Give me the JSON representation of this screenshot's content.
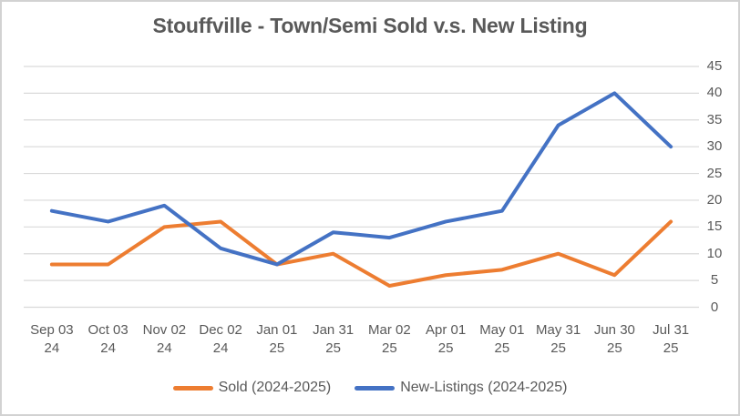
{
  "chart_data": {
    "type": "line",
    "title": "Stouffville - Town/Semi Sold v.s. New Listing",
    "categories": [
      {
        "line1": "Sep 03",
        "line2": "24"
      },
      {
        "line1": "Oct 03",
        "line2": "24"
      },
      {
        "line1": "Nov 02",
        "line2": "24"
      },
      {
        "line1": "Dec 02",
        "line2": "24"
      },
      {
        "line1": "Jan 01",
        "line2": "25"
      },
      {
        "line1": "Jan 31",
        "line2": "25"
      },
      {
        "line1": "Mar 02",
        "line2": "25"
      },
      {
        "line1": "Apr 01",
        "line2": "25"
      },
      {
        "line1": "May 01",
        "line2": "25"
      },
      {
        "line1": "May 31",
        "line2": "25"
      },
      {
        "line1": "Jun 30",
        "line2": "25"
      },
      {
        "line1": "Jul 31",
        "line2": "25"
      }
    ],
    "series": [
      {
        "name": "Sold (2024-2025)",
        "color": "#ED7D31",
        "values": [
          8,
          8,
          15,
          16,
          8,
          10,
          4,
          6,
          7,
          10,
          6,
          16
        ]
      },
      {
        "name": "New-Listings (2024-2025)",
        "color": "#4472C4",
        "values": [
          18,
          16,
          19,
          11,
          8,
          14,
          13,
          16,
          18,
          34,
          40,
          30
        ]
      }
    ],
    "ylim": [
      0,
      45
    ],
    "yticks": [
      0,
      5,
      10,
      15,
      20,
      25,
      30,
      35,
      40,
      45
    ],
    "y_axis_side": "right",
    "grid": true,
    "legend_position": "bottom",
    "gridline_color": "#D9D9D9",
    "text_color": "#595959"
  }
}
